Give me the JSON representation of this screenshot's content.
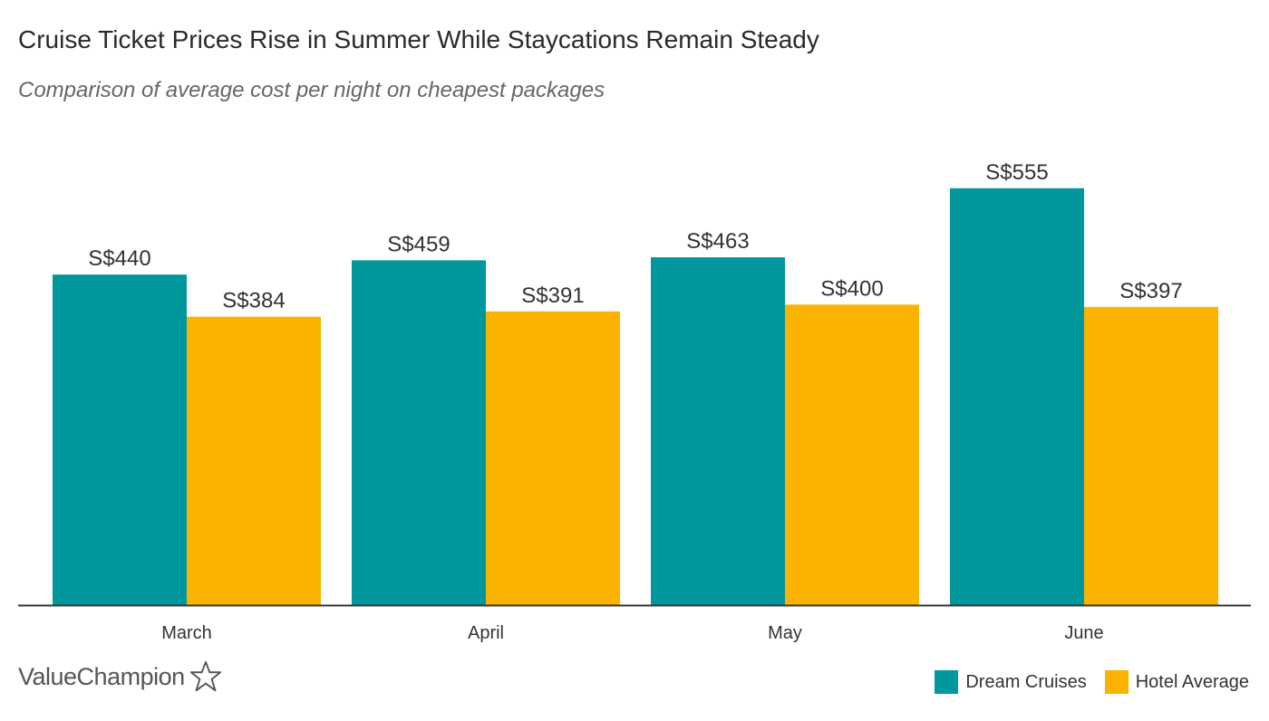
{
  "chart_data": {
    "type": "bar",
    "title": "Cruise Ticket Prices Rise in Summer While Staycations Remain Steady",
    "subtitle": "Comparison of average cost per night on cheapest packages",
    "categories": [
      "March",
      "April",
      "May",
      "June"
    ],
    "series": [
      {
        "name": "Dream Cruises",
        "color": "#00979d",
        "values": [
          440,
          459,
          463,
          555
        ],
        "labels": [
          "S$440",
          "S$459",
          "S$463",
          "S$555"
        ]
      },
      {
        "name": "Hotel Average",
        "color": "#f9b300",
        "values": [
          384,
          391,
          400,
          397
        ],
        "labels": [
          "S$384",
          "S$391",
          "S$400",
          "S$397"
        ]
      }
    ],
    "xlabel": "",
    "ylabel": "",
    "ylim": [
      0,
      600
    ],
    "grid": false,
    "legend_position": "bottom-right"
  },
  "brand": {
    "name": "ValueChampion",
    "icon": "star-outline-icon"
  },
  "colors": {
    "axis": "#333333",
    "label_text": "#333333"
  }
}
